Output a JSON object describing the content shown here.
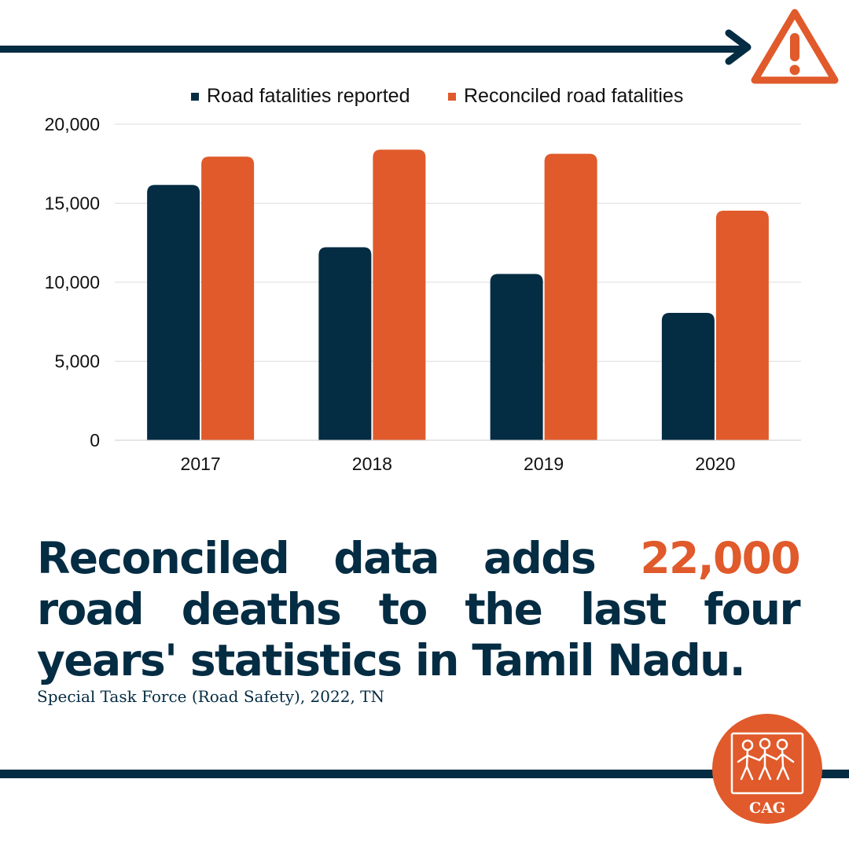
{
  "headline": {
    "before": "Reconciled data adds ",
    "highlight": "22,000",
    "after": " road deaths to the last four years' statistics in Tamil Nadu."
  },
  "source": "Special Task Force (Road Safety), 2022, TN",
  "logo": {
    "text": "CAG",
    "icon": "cag-figures-logo"
  },
  "icons": {
    "arrow": "arrow-right-icon",
    "warning": "warning-triangle-icon"
  },
  "colors": {
    "navy": "#042c43",
    "orange": "#e05a2b",
    "grid": "#dddddd"
  },
  "chart_data": {
    "type": "bar",
    "categories": [
      "2017",
      "2018",
      "2019",
      "2020"
    ],
    "series": [
      {
        "name": "Road fatalities reported",
        "color": "#042c43",
        "values": [
          16157,
          12216,
          10525,
          8060
        ]
      },
      {
        "name": "Reconciled road fatalities",
        "color": "#e05a2b",
        "values": [
          17950,
          18392,
          18129,
          14527
        ]
      }
    ],
    "y_ticks": [
      "0",
      "5,000",
      "10,000",
      "15,000",
      "20,000"
    ],
    "ylim": [
      0,
      20000
    ],
    "grid": true,
    "legend_position": "top"
  }
}
